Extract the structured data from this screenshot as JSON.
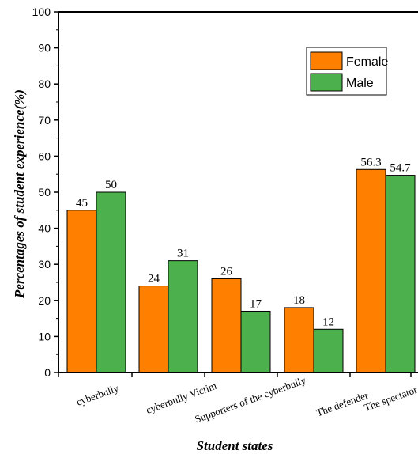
{
  "chart_data": {
    "type": "bar",
    "categories": [
      "cyberbully",
      "cyberbully  Victim",
      "Supporters of the cyberbully",
      "The defender",
      "The spectator"
    ],
    "series": [
      {
        "name": "Female",
        "values": [
          45,
          24,
          26,
          18,
          56.3
        ],
        "labels": [
          "45",
          "24",
          "26",
          "18",
          "56.3"
        ],
        "color": "#FF8000"
      },
      {
        "name": "Male",
        "values": [
          50,
          31,
          17,
          12,
          54.7
        ],
        "labels": [
          "50",
          "31",
          "17",
          "12",
          "54.7"
        ],
        "color": "#4CB04C"
      }
    ],
    "xlabel": "Student states",
    "ylabel": "Percentages of student experience(%)",
    "ylim": [
      0,
      100
    ],
    "yticks": [
      "0",
      "10",
      "20",
      "30",
      "40",
      "50",
      "60",
      "70",
      "80",
      "90",
      "100"
    ],
    "legend": "top-right",
    "grid": false
  }
}
